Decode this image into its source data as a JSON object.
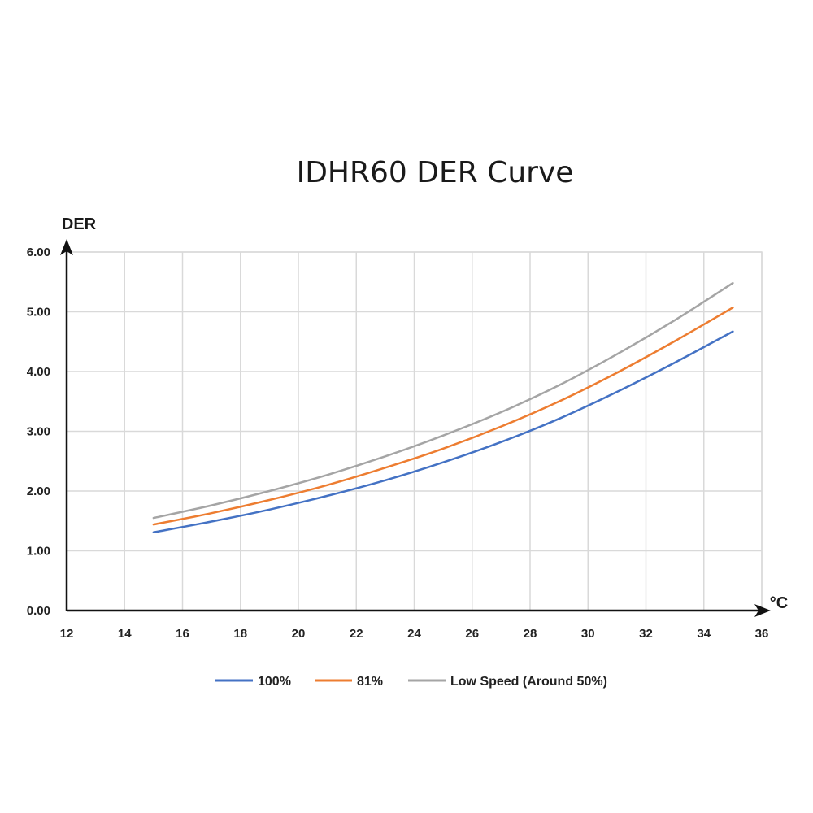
{
  "chart_data": {
    "type": "line",
    "title": "IDHR60  DER Curve",
    "ylabel": "DER",
    "xlabel": "°C",
    "xlim": [
      12,
      36
    ],
    "ylim": [
      0,
      6
    ],
    "x_ticks": [
      12,
      14,
      16,
      18,
      20,
      22,
      24,
      26,
      28,
      30,
      32,
      34,
      36
    ],
    "y_ticks": [
      "0.00",
      "1.00",
      "2.00",
      "3.00",
      "4.00",
      "5.00",
      "6.00"
    ],
    "y_tick_values": [
      0,
      1,
      2,
      3,
      4,
      5,
      6
    ],
    "grid": true,
    "legend_position": "bottom",
    "x": [
      15,
      17,
      19,
      21,
      23,
      25,
      27,
      29,
      31,
      33,
      35
    ],
    "series": [
      {
        "name": "100%",
        "color": "#4472C4",
        "values": [
          1.31,
          1.49,
          1.69,
          1.92,
          2.18,
          2.48,
          2.82,
          3.21,
          3.66,
          4.15,
          4.67
        ]
      },
      {
        "name": "81%",
        "color": "#ED7D31",
        "values": [
          1.44,
          1.63,
          1.85,
          2.1,
          2.39,
          2.71,
          3.08,
          3.5,
          3.98,
          4.51,
          5.07
        ]
      },
      {
        "name": "Low Speed (Around 50%)",
        "color": "#A5A5A5",
        "values": [
          1.55,
          1.76,
          2.0,
          2.27,
          2.58,
          2.93,
          3.32,
          3.77,
          4.29,
          4.86,
          5.48
        ]
      }
    ]
  }
}
